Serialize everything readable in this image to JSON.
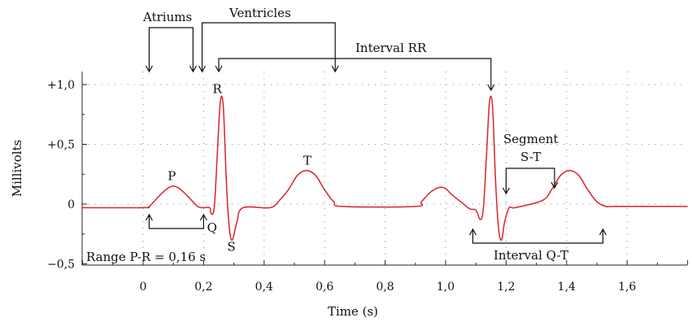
{
  "chart_data": {
    "type": "line",
    "title": "",
    "xlabel": "Time (s)",
    "ylabel": "Millivolts",
    "xlim": [
      -0.2,
      1.8
    ],
    "ylim": [
      -0.5,
      1.0
    ],
    "grid": true,
    "x_ticks": [
      {
        "value": 0,
        "label": "0"
      },
      {
        "value": 0.2,
        "label": "0,2"
      },
      {
        "value": 0.4,
        "label": "0,4"
      },
      {
        "value": 0.6,
        "label": "0,6"
      },
      {
        "value": 0.8,
        "label": "0,8"
      },
      {
        "value": 1.0,
        "label": "1,0"
      },
      {
        "value": 1.2,
        "label": "1,2"
      },
      {
        "value": 1.4,
        "label": "1,4"
      },
      {
        "value": 1.6,
        "label": "1,6"
      }
    ],
    "y_ticks": [
      {
        "value": 1.0,
        "label": "+1,0"
      },
      {
        "value": 0.5,
        "label": "+0,5"
      },
      {
        "value": 0,
        "label": "0"
      },
      {
        "value": -0.5,
        "label": "−0,5"
      }
    ],
    "series": [
      {
        "color": "#d9232d",
        "x": [
          -0.2,
          0.0,
          0.02,
          0.05,
          0.08,
          0.1,
          0.12,
          0.15,
          0.18,
          0.2,
          0.22,
          0.225,
          0.235,
          0.245,
          0.255,
          0.265,
          0.275,
          0.285,
          0.295,
          0.31,
          0.33,
          0.42,
          0.45,
          0.48,
          0.51,
          0.54,
          0.57,
          0.6,
          0.63,
          0.66,
          0.9,
          0.92,
          0.95,
          0.98,
          1.0,
          1.02,
          1.05,
          1.08,
          1.1,
          1.115,
          1.125,
          1.135,
          1.145,
          1.155,
          1.165,
          1.175,
          1.185,
          1.195,
          1.21,
          1.23,
          1.32,
          1.35,
          1.38,
          1.41,
          1.44,
          1.47,
          1.5,
          1.53,
          1.56,
          1.8
        ],
        "y": [
          -0.03,
          -0.03,
          -0.02,
          0.06,
          0.13,
          0.15,
          0.13,
          0.06,
          -0.02,
          -0.03,
          -0.03,
          -0.08,
          -0.03,
          0.4,
          0.85,
          0.82,
          0.2,
          -0.2,
          -0.3,
          -0.15,
          -0.03,
          -0.03,
          0.03,
          0.12,
          0.24,
          0.28,
          0.24,
          0.12,
          0.02,
          -0.02,
          -0.02,
          0.02,
          0.1,
          0.14,
          0.13,
          0.08,
          0.02,
          -0.04,
          -0.05,
          -0.13,
          -0.03,
          0.4,
          0.85,
          0.82,
          0.2,
          -0.2,
          -0.3,
          -0.15,
          -0.03,
          -0.03,
          0.03,
          0.12,
          0.24,
          0.28,
          0.24,
          0.12,
          0.02,
          -0.02,
          -0.02,
          -0.02
        ]
      }
    ],
    "wave_labels": [
      {
        "text": "P",
        "x": 0.095,
        "y": 0.2
      },
      {
        "text": "R",
        "x": 0.245,
        "y": 0.93
      },
      {
        "text": "Q",
        "x": 0.228,
        "y": -0.23
      },
      {
        "text": "S",
        "x": 0.292,
        "y": -0.39
      },
      {
        "text": "T",
        "x": 0.543,
        "y": 0.33
      }
    ],
    "annotations": {
      "atriums": {
        "text": "Atriums",
        "x_start": 0.02,
        "x_end": 0.165
      },
      "ventricles": {
        "text": "Ventricles",
        "x_start": 0.195,
        "x_end": 0.635
      },
      "interval_rr": {
        "text": "Interval RR",
        "x_start": 0.25,
        "x_end": 1.15
      },
      "segment_st": {
        "text": "Segment",
        "text2": "S-T",
        "x_start": 1.2,
        "x_end": 1.36
      },
      "range_pr": {
        "text": "Range P-R = 0,16 s",
        "x_start": 0.02,
        "x_end": 0.2
      },
      "interval_qt": {
        "text": "Interval Q-T",
        "x_start": 1.09,
        "x_end": 1.52
      }
    }
  }
}
